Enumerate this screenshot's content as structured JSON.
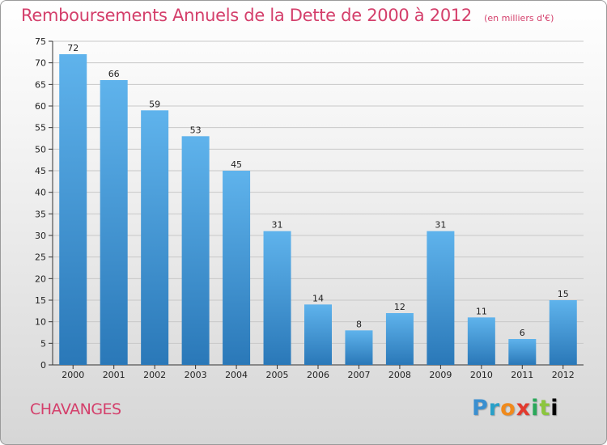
{
  "header": {
    "title": "Remboursements Annuels de la Dette de 2000 à 2012",
    "unit": "(en milliers d'€)"
  },
  "footer": {
    "commune": "CHAVANGES",
    "brand_letters": [
      "P",
      "r",
      "o",
      "x",
      "i",
      "t",
      "i"
    ]
  },
  "colors": {
    "title": "#d43f6b",
    "bar_top": "#5fb3ec",
    "bar_bottom": "#2a78b8",
    "grid": "#c8c8c8"
  },
  "chart_data": {
    "type": "bar",
    "title": "Remboursements Annuels de la Dette de 2000 à 2012",
    "xlabel": "",
    "ylabel": "",
    "categories": [
      "2000",
      "2001",
      "2002",
      "2003",
      "2004",
      "2005",
      "2006",
      "2007",
      "2008",
      "2009",
      "2010",
      "2011",
      "2012"
    ],
    "values": [
      72,
      66,
      59,
      53,
      45,
      31,
      14,
      8,
      12,
      31,
      11,
      6,
      15
    ],
    "ylim": [
      0,
      75
    ],
    "yticks": [
      0,
      5,
      10,
      15,
      20,
      25,
      30,
      35,
      40,
      45,
      50,
      55,
      60,
      65,
      70,
      75
    ],
    "grid": true,
    "legend": "none"
  }
}
